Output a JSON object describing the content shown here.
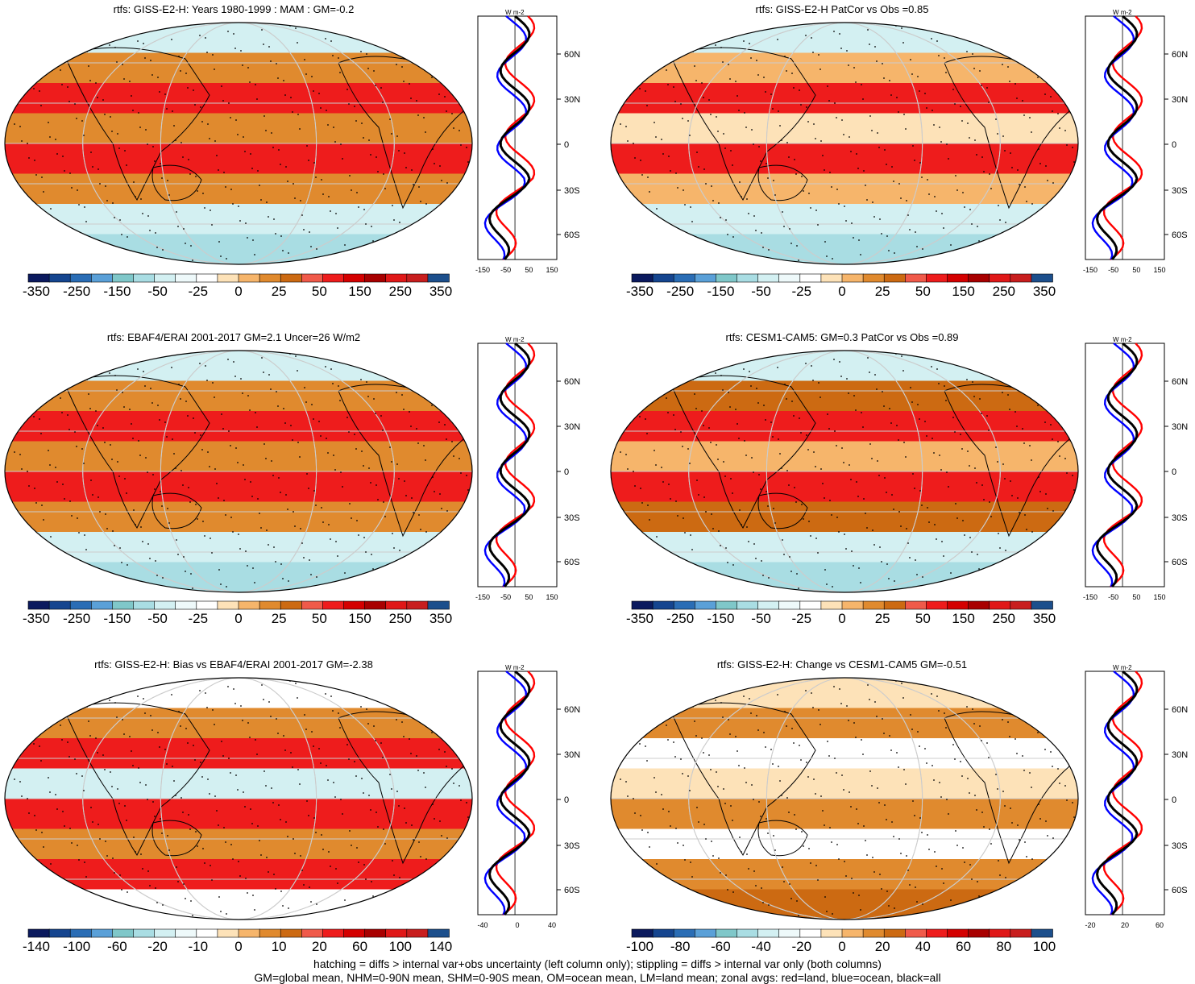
{
  "panels": [
    {
      "title": "rtfs: GISS-E2-H: Years 1980-1999 : MAM : GM=-0.2",
      "cbar_labels": [
        "-350",
        "-250",
        "-150",
        "-50",
        "-25",
        "0",
        "25",
        "50",
        "150",
        "250",
        "350"
      ],
      "zonal_xticks": [
        "-150",
        "-50",
        "50",
        "150"
      ]
    },
    {
      "title": "rtfs: GISS-E2-H PatCor vs Obs =0.85",
      "cbar_labels": [
        "-350",
        "-250",
        "-150",
        "-50",
        "-25",
        "0",
        "25",
        "50",
        "150",
        "250",
        "350"
      ],
      "zonal_xticks": [
        "-150",
        "-50",
        "50",
        "150"
      ]
    },
    {
      "title": "rtfs: EBAF4/ERAI 2001-2017 GM=2.1 Uncer=26 W/m2",
      "cbar_labels": [
        "-350",
        "-250",
        "-150",
        "-50",
        "-25",
        "0",
        "25",
        "50",
        "150",
        "250",
        "350"
      ],
      "zonal_xticks": [
        "-150",
        "-50",
        "50",
        "150"
      ]
    },
    {
      "title": "rtfs: CESM1-CAM5: GM=0.3 PatCor vs Obs =0.89",
      "cbar_labels": [
        "-350",
        "-250",
        "-150",
        "-50",
        "-25",
        "0",
        "25",
        "50",
        "150",
        "250",
        "350"
      ],
      "zonal_xticks": [
        "-150",
        "-50",
        "50",
        "150"
      ]
    },
    {
      "title": "rtfs: GISS-E2-H: Bias vs EBAF4/ERAI 2001-2017 GM=-2.38",
      "cbar_labels": [
        "-140",
        "-100",
        "-60",
        "-20",
        "-10",
        "0",
        "10",
        "20",
        "60",
        "100",
        "140"
      ],
      "zonal_xticks": [
        "-40",
        "0",
        "40"
      ]
    },
    {
      "title": "rtfs: GISS-E2-H: Change vs CESM1-CAM5 GM=-0.51",
      "cbar_labels": [
        "-100",
        "-80",
        "-60",
        "-40",
        "-20",
        "0",
        "20",
        "40",
        "60",
        "80",
        "100"
      ],
      "zonal_xticks": [
        "-20",
        "20",
        "60"
      ]
    }
  ],
  "zonal_units": "W m-2",
  "lat_labels": [
    "60N",
    "30N",
    "0",
    "30S",
    "60S"
  ],
  "colorbar_colors": [
    "#0b1a5e",
    "#15458f",
    "#2a6db5",
    "#5aa0d8",
    "#7fc7c9",
    "#a9dde3",
    "#d3f0f2",
    "#eef9fa",
    "#ffffff",
    "#fde2b8",
    "#f6b56b",
    "#e08a2e",
    "#cc6a12",
    "#f05a4a",
    "#ee1c1c",
    "#d40000",
    "#a80000",
    "#e01818",
    "#c81e1e",
    "#1c4f8c"
  ],
  "series_colors": {
    "land": "#ff0000",
    "ocean": "#0000ff",
    "all": "#000000"
  },
  "footer": {
    "line1": "hatching = diffs > internal var+obs uncertainty (left column only); stippling = diffs > internal var only (both columns)",
    "line2": "GM=global mean, NHM=0-90N mean, SHM=0-90S mean, OM=ocean mean, LM=land mean; zonal avgs: red=land, blue=ocean, black=all"
  }
}
